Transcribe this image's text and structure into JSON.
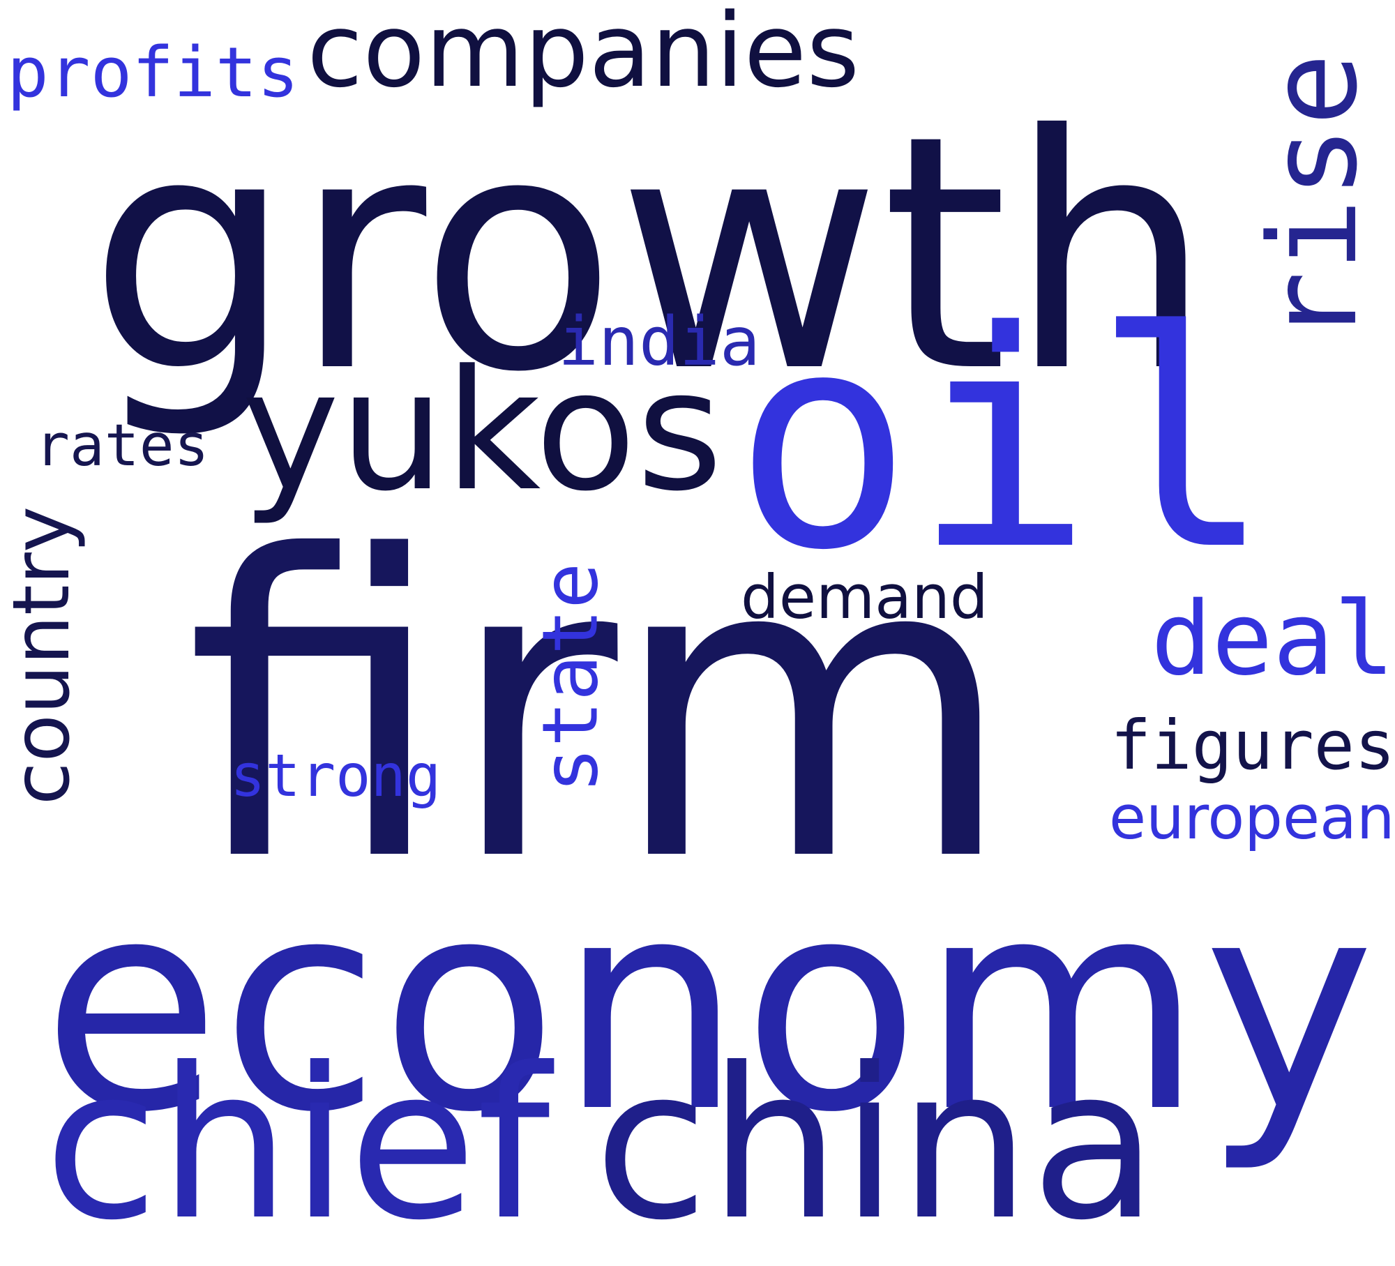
{
  "words": [
    {
      "key": "growth",
      "text": "growth",
      "color": "#111147"
    },
    {
      "key": "firm",
      "text": "firm",
      "color": "#16165c"
    },
    {
      "key": "economy",
      "text": "economy",
      "color": "#2626a8"
    },
    {
      "key": "oil",
      "text": "oil",
      "color": "#3333dd"
    },
    {
      "key": "chief",
      "text": "chief",
      "color": "#2929b0"
    },
    {
      "key": "china",
      "text": "china",
      "color": "#1f1f8a"
    },
    {
      "key": "yukos",
      "text": "yukos",
      "color": "#101040"
    },
    {
      "key": "rise",
      "text": "rise",
      "color": "#252590"
    },
    {
      "key": "companies",
      "text": "companies",
      "color": "#101040"
    },
    {
      "key": "deal",
      "text": "deal",
      "color": "#3333dd"
    },
    {
      "key": "state",
      "text": "state",
      "color": "#3333dd"
    },
    {
      "key": "country",
      "text": "country",
      "color": "#15154f"
    },
    {
      "key": "profits",
      "text": "profits",
      "color": "#3333dd"
    },
    {
      "key": "india",
      "text": "india",
      "color": "#2a2ab0"
    },
    {
      "key": "rates",
      "text": "rates",
      "color": "#161650"
    },
    {
      "key": "demand",
      "text": "demand",
      "color": "#101040"
    },
    {
      "key": "figures",
      "text": "figures",
      "color": "#13134a"
    },
    {
      "key": "strong",
      "text": "strong",
      "color": "#3333dd"
    },
    {
      "key": "european",
      "text": "european",
      "color": "#3333dd"
    }
  ]
}
